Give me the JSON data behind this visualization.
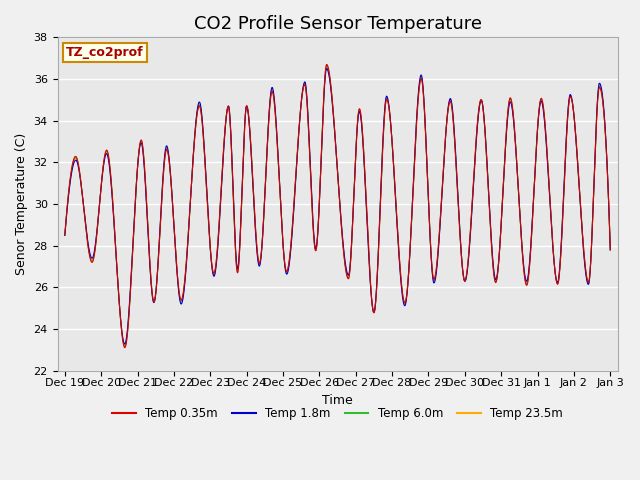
{
  "title": "CO2 Profile Sensor Temperature",
  "ylabel": "Senor Temperature (C)",
  "xlabel": "Time",
  "ylim": [
    22,
    38
  ],
  "yticks": [
    22,
    24,
    26,
    28,
    30,
    32,
    34,
    36,
    38
  ],
  "line_colors": {
    "Temp 0.35m": "#dd0000",
    "Temp 1.8m": "#0000cc",
    "Temp 6.0m": "#33bb33",
    "Temp 23.5m": "#ffaa00"
  },
  "legend_label": "TZ_co2prof",
  "legend_label_color": "#aa0000",
  "legend_box_facecolor": "#ffffee",
  "legend_box_edgecolor": "#cc8800",
  "fig_facecolor": "#f0f0f0",
  "background_color": "#e8e8e8",
  "grid_color": "#ffffff",
  "title_fontsize": 13,
  "axis_fontsize": 9,
  "tick_fontsize": 8,
  "tick_labels": [
    "Dec 19",
    "Dec 20",
    "Dec 21",
    "Dec 22",
    "Dec 23",
    "Dec 24",
    "Dec 25",
    "Dec 26",
    "Dec 27",
    "Dec 28",
    "Dec 29",
    "Dec 30",
    "Dec 31",
    "Jan 1",
    "Jan 2",
    "Jan 3"
  ]
}
